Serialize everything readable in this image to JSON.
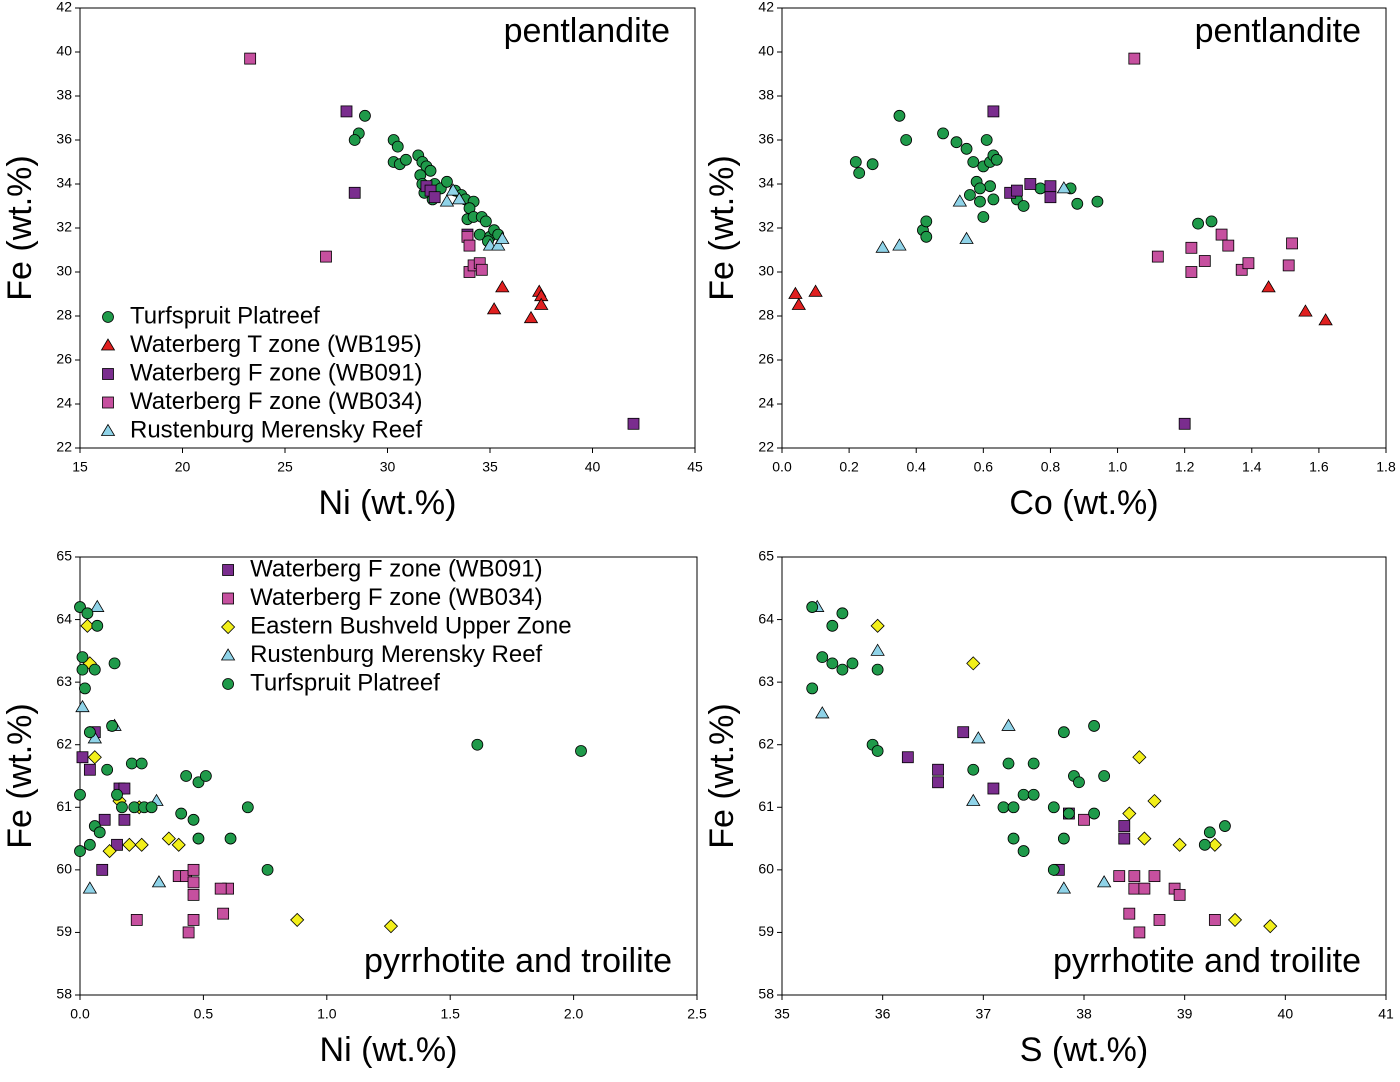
{
  "chart_data": [
    {
      "type": "scatter",
      "annotation": "pentlandite",
      "annotation_position": "upper right",
      "xlabel": "Ni (wt.%)",
      "ylabel": "Fe (wt.%)",
      "xlim": [
        15,
        45
      ],
      "ylim": [
        22,
        42
      ],
      "xticks": [
        15,
        20,
        25,
        30,
        35,
        40,
        45
      ],
      "yticks": [
        22,
        24,
        26,
        28,
        30,
        32,
        34,
        36,
        38,
        40,
        42
      ],
      "legend": "lower left",
      "series": [
        {
          "name": "Turfspruit Platreef",
          "color": "#1f9a4a",
          "marker": "circle",
          "x": [
            28.9,
            28.6,
            28.4,
            30.3,
            30.5,
            30.3,
            30.6,
            30.9,
            31.5,
            31.7,
            31.9,
            32.1,
            31.6,
            31.7,
            32.3,
            32.6,
            32.9,
            33.3,
            33.6,
            33.8,
            34.2,
            34.0,
            33.9,
            34.2,
            34.6,
            34.8,
            34.5,
            35.0,
            35.2,
            35.4,
            34.9,
            32.2,
            31.8
          ],
          "y": [
            37.1,
            36.3,
            36.0,
            36.0,
            35.7,
            35.0,
            34.9,
            35.1,
            35.3,
            35.0,
            34.8,
            34.6,
            34.4,
            34.0,
            34.0,
            33.8,
            34.1,
            33.7,
            33.5,
            33.3,
            33.2,
            32.9,
            32.4,
            32.5,
            32.5,
            32.3,
            31.7,
            31.6,
            31.9,
            31.7,
            31.4,
            33.3,
            33.6
          ]
        },
        {
          "name": "Waterberg T zone (WB195)",
          "color": "#e02020",
          "marker": "triangle",
          "x": [
            35.6,
            37.4,
            37.5,
            37.5,
            37.0,
            35.2
          ],
          "y": [
            29.3,
            29.1,
            28.9,
            28.5,
            27.9,
            28.3
          ]
        },
        {
          "name": "Waterberg F zone (WB091)",
          "color": "#7a2d8e",
          "marker": "square",
          "x": [
            28.0,
            28.4,
            31.9,
            32.1,
            32.3,
            33.9,
            42.0
          ],
          "y": [
            37.3,
            33.6,
            33.9,
            33.7,
            33.4,
            31.7,
            23.1
          ]
        },
        {
          "name": "Waterberg F zone (WB034)",
          "color": "#c6509f",
          "marker": "square",
          "x": [
            23.3,
            27.0,
            34.0,
            34.2,
            34.5,
            34.6,
            33.9,
            34.0
          ],
          "y": [
            39.7,
            30.7,
            30.0,
            30.3,
            30.4,
            30.1,
            31.6,
            31.2
          ]
        },
        {
          "name": "Rustenburg Merensky Reef",
          "color": "#8fd3e8",
          "marker": "triangle",
          "x": [
            32.9,
            33.2,
            35.0,
            35.4,
            35.6,
            33.5
          ],
          "y": [
            33.2,
            33.7,
            31.2,
            31.2,
            31.5,
            33.3
          ]
        }
      ]
    },
    {
      "type": "scatter",
      "annotation": "pentlandite",
      "annotation_position": "upper right",
      "xlabel": "Co (wt.%)",
      "ylabel": "Fe (wt.%)",
      "xlim": [
        0,
        1.8
      ],
      "ylim": [
        22,
        42
      ],
      "xticks": [
        {
          "value": 0,
          "label": "0.0"
        },
        0.2,
        0.4,
        0.6,
        0.8,
        {
          "value": 1,
          "label": "1.0"
        },
        1.2,
        1.4,
        1.6,
        1.8
      ],
      "yticks": [
        22,
        24,
        26,
        28,
        30,
        32,
        34,
        36,
        38,
        40,
        42
      ],
      "series": [
        {
          "color": "#1f9a4a",
          "marker": "circle",
          "x": [
            0.22,
            0.23,
            0.27,
            0.35,
            0.37,
            0.42,
            0.43,
            0.43,
            0.48,
            0.52,
            0.55,
            0.57,
            0.58,
            0.56,
            0.59,
            0.6,
            0.6,
            0.61,
            0.62,
            0.62,
            0.63,
            0.64,
            0.63,
            0.7,
            0.72,
            0.77,
            0.86,
            0.88,
            0.94,
            1.24,
            1.28,
            0.59
          ],
          "y": [
            35.0,
            34.5,
            34.9,
            37.1,
            36.0,
            31.9,
            31.6,
            32.3,
            36.3,
            35.9,
            35.6,
            35.0,
            34.1,
            33.5,
            33.2,
            32.5,
            34.8,
            36.0,
            35.0,
            33.9,
            35.3,
            35.1,
            33.3,
            33.3,
            33.0,
            33.8,
            33.8,
            33.1,
            33.2,
            32.2,
            32.3,
            33.8
          ]
        },
        {
          "color": "#e02020",
          "marker": "triangle",
          "x": [
            0.04,
            0.05,
            0.1,
            1.45,
            1.56,
            1.62
          ],
          "y": [
            29.0,
            28.5,
            29.1,
            29.3,
            28.2,
            27.8
          ]
        },
        {
          "color": "#7a2d8e",
          "marker": "square",
          "x": [
            0.63,
            0.68,
            0.7,
            0.74,
            0.8,
            0.8,
            1.2
          ],
          "y": [
            37.3,
            33.6,
            33.7,
            34.0,
            33.9,
            33.4,
            23.1
          ]
        },
        {
          "color": "#c6509f",
          "marker": "square",
          "x": [
            1.05,
            1.12,
            1.22,
            1.22,
            1.26,
            1.31,
            1.33,
            1.37,
            1.39,
            1.51,
            1.52
          ],
          "y": [
            39.7,
            30.7,
            31.1,
            30.0,
            30.5,
            31.7,
            31.2,
            30.1,
            30.4,
            30.3,
            31.3
          ]
        },
        {
          "color": "#8fd3e8",
          "marker": "triangle",
          "x": [
            0.3,
            0.35,
            0.53,
            0.55,
            0.84
          ],
          "y": [
            31.1,
            31.2,
            33.2,
            31.5,
            33.8
          ]
        }
      ]
    },
    {
      "type": "scatter",
      "annotation": "pyrrhotite and troilite",
      "annotation_position": "lower right",
      "xlabel": "Ni (wt.%)",
      "ylabel": "Fe (wt.%)",
      "xlim": [
        0,
        2.5
      ],
      "ylim": [
        58,
        65
      ],
      "xticks": [
        {
          "value": 0,
          "label": "0.0"
        },
        0.5,
        {
          "value": 1,
          "label": "1.0"
        },
        1.5,
        {
          "value": 2,
          "label": "2.0"
        },
        2.5
      ],
      "yticks": [
        58,
        59,
        60,
        61,
        62,
        63,
        64,
        65
      ],
      "legend": "upper center",
      "series": [
        {
          "name": "Waterberg F zone (WB091)",
          "color": "#7a2d8e",
          "marker": "square",
          "x": [
            0.01,
            0.04,
            0.06,
            0.09,
            0.1,
            0.16,
            0.18,
            0.18,
            0.15
          ],
          "y": [
            61.8,
            61.6,
            62.2,
            60.0,
            60.8,
            61.3,
            61.3,
            60.8,
            60.4
          ]
        },
        {
          "name": "Waterberg F zone (WB034)",
          "color": "#c6509f",
          "marker": "square",
          "x": [
            0.23,
            0.4,
            0.43,
            0.46,
            0.46,
            0.46,
            0.46,
            0.44,
            0.58,
            0.6,
            0.57
          ],
          "y": [
            59.2,
            59.9,
            59.9,
            60.0,
            59.8,
            59.6,
            59.2,
            59.0,
            59.3,
            59.7,
            59.7
          ]
        },
        {
          "name": "Eastern Bushveld Upper Zone",
          "color": "#f2ef1a",
          "marker": "diamond",
          "x": [
            0.03,
            0.04,
            0.06,
            0.12,
            0.16,
            0.2,
            0.25,
            0.36,
            0.4,
            0.88,
            1.26,
            0.24
          ],
          "y": [
            63.9,
            63.3,
            61.8,
            60.3,
            61.1,
            60.4,
            60.4,
            60.5,
            60.4,
            59.2,
            59.1,
            61.0
          ]
        },
        {
          "name": "Rustenburg Merensky Reef",
          "color": "#8fd3e8",
          "marker": "triangle",
          "x": [
            0.07,
            0.01,
            0.06,
            0.14,
            0.31,
            0.04,
            0.32
          ],
          "y": [
            64.2,
            62.6,
            62.1,
            62.3,
            61.1,
            59.7,
            59.8
          ]
        },
        {
          "name": "Turfspruit Platreef",
          "color": "#1f9a4a",
          "marker": "circle",
          "x": [
            0.0,
            0.03,
            0.07,
            0.01,
            0.01,
            0.06,
            0.02,
            0.14,
            0.04,
            0.13,
            0.11,
            0.21,
            0.25,
            0.15,
            0.17,
            0.22,
            0.26,
            0.29,
            0.43,
            0.48,
            0.51,
            0.41,
            0.46,
            0.61,
            0.48,
            0.68,
            0.76,
            1.61,
            2.03,
            0.0,
            0.06,
            0.08,
            0.0,
            0.04
          ],
          "y": [
            64.2,
            64.1,
            63.9,
            63.4,
            63.2,
            63.2,
            62.9,
            63.3,
            62.2,
            62.3,
            61.6,
            61.7,
            61.7,
            61.2,
            61.0,
            61.0,
            61.0,
            61.0,
            61.5,
            61.4,
            61.5,
            60.9,
            60.8,
            60.5,
            60.5,
            61.0,
            60.0,
            62.0,
            61.9,
            61.2,
            60.7,
            60.6,
            60.3,
            60.4
          ]
        }
      ]
    },
    {
      "type": "scatter",
      "annotation": "pyrrhotite and troilite",
      "annotation_position": "lower right",
      "xlabel": "S (wt.%)",
      "ylabel": "Fe (wt.%)",
      "xlim": [
        35,
        41
      ],
      "ylim": [
        58,
        65
      ],
      "xticks": [
        35,
        36,
        37,
        38,
        39,
        40,
        41
      ],
      "yticks": [
        58,
        59,
        60,
        61,
        62,
        63,
        64,
        65
      ],
      "series": [
        {
          "color": "#7a2d8e",
          "marker": "square",
          "x": [
            36.25,
            36.55,
            36.55,
            36.8,
            37.1,
            37.75,
            37.85,
            38.4,
            38.4
          ],
          "y": [
            61.8,
            61.6,
            61.4,
            62.2,
            61.3,
            60.0,
            60.9,
            60.7,
            60.5
          ]
        },
        {
          "color": "#c6509f",
          "marker": "square",
          "x": [
            38.0,
            38.35,
            38.45,
            38.5,
            38.5,
            38.55,
            38.6,
            38.7,
            38.75,
            38.9,
            38.95,
            39.3
          ],
          "y": [
            60.8,
            59.9,
            59.3,
            59.9,
            59.7,
            59.0,
            59.7,
            59.9,
            59.2,
            59.7,
            59.6,
            59.2
          ]
        },
        {
          "color": "#f2ef1a",
          "marker": "diamond",
          "x": [
            35.95,
            36.9,
            38.45,
            38.55,
            38.6,
            38.7,
            38.95,
            39.3,
            39.5,
            39.85
          ],
          "y": [
            63.9,
            63.3,
            60.9,
            61.8,
            60.5,
            61.1,
            60.4,
            60.4,
            59.2,
            59.1
          ]
        },
        {
          "color": "#8fd3e8",
          "marker": "triangle",
          "x": [
            35.35,
            35.4,
            35.95,
            36.9,
            36.95,
            37.25,
            37.8,
            38.2
          ],
          "y": [
            64.2,
            62.5,
            63.5,
            61.1,
            62.1,
            62.3,
            59.7,
            59.8
          ]
        },
        {
          "color": "#1f9a4a",
          "marker": "circle",
          "x": [
            35.3,
            35.3,
            35.4,
            35.5,
            35.5,
            35.6,
            35.6,
            35.7,
            35.95,
            35.9,
            35.95,
            36.9,
            37.2,
            37.25,
            37.3,
            37.3,
            37.4,
            37.4,
            37.5,
            37.5,
            37.7,
            37.7,
            37.8,
            37.8,
            37.85,
            37.9,
            37.95,
            38.1,
            38.1,
            38.2,
            39.2,
            39.25,
            39.4
          ],
          "y": [
            64.2,
            62.9,
            63.4,
            63.9,
            63.3,
            64.1,
            63.2,
            63.3,
            63.2,
            62.0,
            61.9,
            61.6,
            61.0,
            61.7,
            61.0,
            60.5,
            60.3,
            61.2,
            61.7,
            61.2,
            61.0,
            60.0,
            60.5,
            62.2,
            60.9,
            61.5,
            61.4,
            60.9,
            62.3,
            61.5,
            60.4,
            60.6,
            60.7
          ]
        }
      ]
    }
  ]
}
